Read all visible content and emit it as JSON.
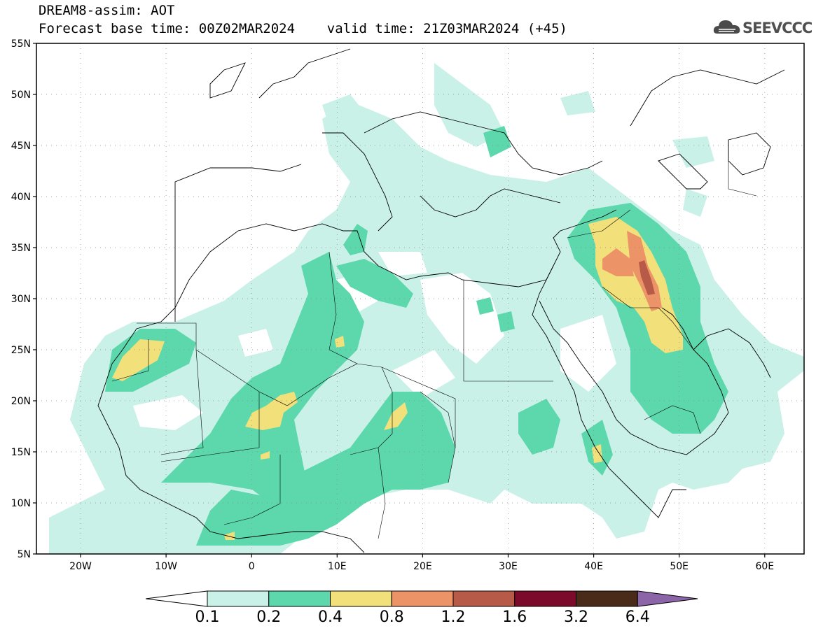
{
  "header": {
    "title_line1": "DREAM8-assim: AOT",
    "title_line2": "Forecast base time: 00Z02MAR2024    valid time: 21Z03MAR2024 (+45)",
    "logo_text": "SEEVCCC"
  },
  "map": {
    "lat_ticks": [
      "55N",
      "50N",
      "45N",
      "40N",
      "35N",
      "30N",
      "25N",
      "20N",
      "15N",
      "10N",
      "5N"
    ],
    "lon_ticks": [
      "20W",
      "10W",
      "0",
      "10E",
      "20E",
      "30E",
      "40E",
      "50E",
      "60E"
    ],
    "grid": true
  },
  "colorbar": {
    "labels": [
      "0.1",
      "0.2",
      "0.4",
      "0.8",
      "1.2",
      "1.6",
      "3.2",
      "6.4"
    ],
    "colors": [
      "#c9f1e8",
      "#5dd8ad",
      "#f2e07a",
      "#ec9468",
      "#b85a48",
      "#7c0a2a",
      "#4a2a18",
      "#8c64a8"
    ]
  },
  "colors": {
    "low": "#c9f1e8",
    "mid": "#5dd8ad",
    "high": "#f2e07a",
    "vhigh": "#ec9468",
    "peak": "#b85a48"
  }
}
